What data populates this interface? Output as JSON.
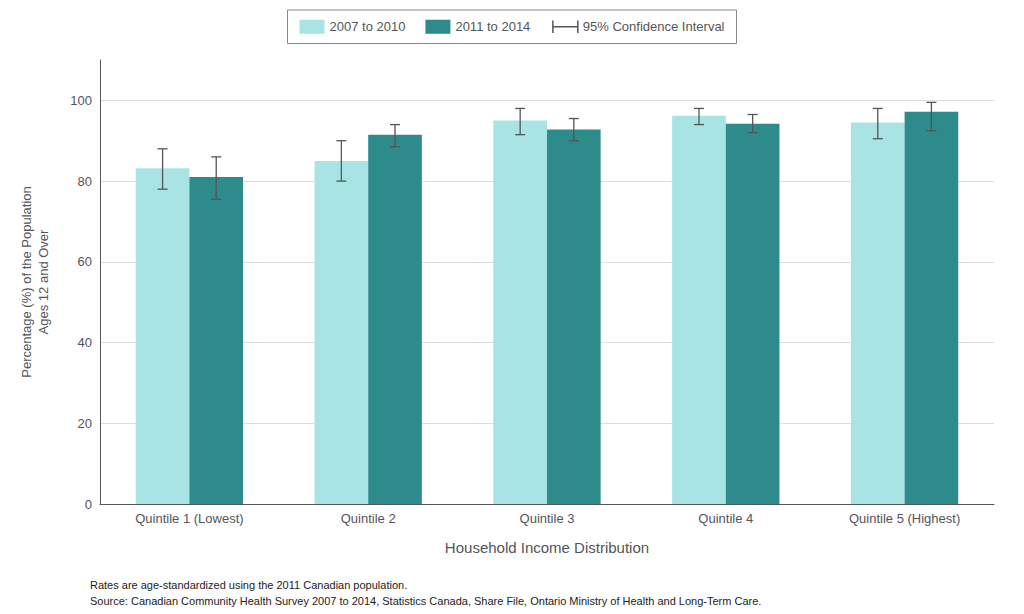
{
  "chart_data": {
    "type": "bar",
    "categories": [
      "Quintile 1 (Lowest)",
      "Quintile 2",
      "Quintile 3",
      "Quintile 4",
      "Quintile 5 (Highest)"
    ],
    "series": [
      {
        "name": "2007 to 2010",
        "color": "#a8e4e4",
        "values": [
          83.2,
          85.0,
          95.0,
          96.2,
          94.5
        ],
        "ci_low": [
          78.0,
          80.0,
          91.5,
          94.0,
          90.5
        ],
        "ci_high": [
          88.0,
          90.0,
          98.0,
          98.0,
          98.0
        ]
      },
      {
        "name": "2011 to 2014",
        "color": "#2e8b8b",
        "values": [
          81.0,
          91.5,
          92.8,
          94.2,
          97.2
        ],
        "ci_low": [
          75.5,
          88.5,
          90.0,
          92.0,
          92.5
        ],
        "ci_high": [
          86.0,
          94.0,
          95.5,
          96.5,
          99.5
        ]
      }
    ],
    "ci_label": "95% Confidence Interval",
    "ci_color": "#555555",
    "xlabel": "Household Income Distribution",
    "ylabel": "Percentage (%) of the Population\nAges 12 and Over",
    "ylim": [
      0,
      110
    ],
    "yticks": [
      0,
      20,
      40,
      60,
      80,
      100
    ],
    "grid": true,
    "legend": "top",
    "footnotes": [
      "Rates are age-standardized using the 2011 Canadian population.",
      "Source: Canadian Community Health Survey 2007 to 2014, Statistics Canada, Share File, Ontario Ministry of Health and Long-Term Care."
    ]
  }
}
